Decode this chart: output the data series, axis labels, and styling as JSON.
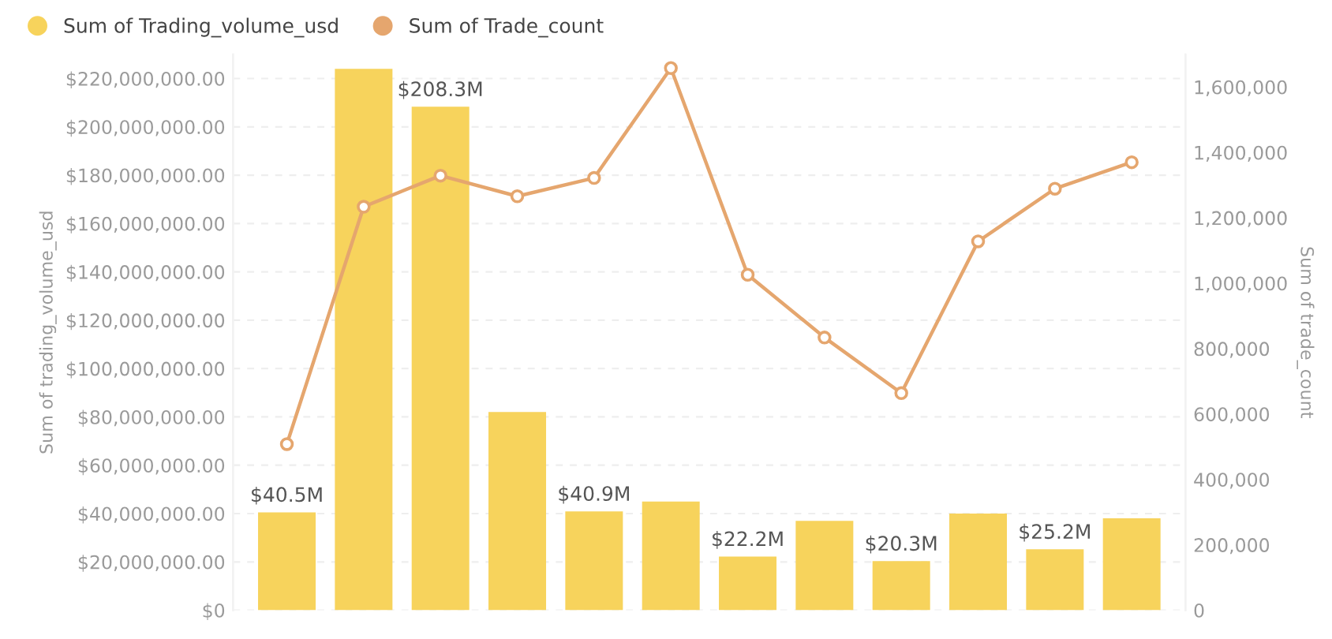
{
  "chart_data": {
    "type": "bar",
    "categories": [
      null,
      null,
      null,
      null,
      null,
      null,
      null,
      null,
      null,
      null,
      null,
      null
    ],
    "ylabel": "Sum of trading_volume_usd",
    "y2label": "Sum of trade_count",
    "series": [
      {
        "name": "Sum of Trading_volume_usd",
        "color": "#f7d35c",
        "values": [
          40500000,
          224000000,
          208300000,
          82000000,
          40900000,
          45000000,
          22200000,
          37000000,
          20300000,
          40000000,
          25200000,
          38000000
        ],
        "value_labels": [
          "$40.5M",
          null,
          "$208.3M",
          null,
          "$40.9M",
          null,
          "$22.2M",
          null,
          "$20.3M",
          null,
          "$25.2M",
          null
        ]
      },
      {
        "name": "Sum of Trade_count",
        "type": "line",
        "axis": "y2",
        "color": "#e5a66e",
        "marker": "circle",
        "values": [
          508000,
          1234000,
          1329000,
          1266000,
          1322000,
          1658000,
          1026000,
          834000,
          664000,
          1128000,
          1289000,
          1370000
        ]
      }
    ],
    "ylim": [
      0,
      230000000
    ],
    "yticks": [
      {
        "value": 0,
        "label": "$0"
      },
      {
        "value": 20000000,
        "label": "$20,000,000.00"
      },
      {
        "value": 40000000,
        "label": "$40,000,000.00"
      },
      {
        "value": 60000000,
        "label": "$60,000,000.00"
      },
      {
        "value": 80000000,
        "label": "$80,000,000.00"
      },
      {
        "value": 100000000,
        "label": "$100,000,000.00"
      },
      {
        "value": 120000000,
        "label": "$120,000,000.00"
      },
      {
        "value": 140000000,
        "label": "$140,000,000.00"
      },
      {
        "value": 160000000,
        "label": "$160,000,000.00"
      },
      {
        "value": 180000000,
        "label": "$180,000,000.00"
      },
      {
        "value": 200000000,
        "label": "$200,000,000.00"
      },
      {
        "value": 220000000,
        "label": "$220,000,000.00"
      }
    ],
    "y2lim": [
      0,
      1700000
    ],
    "y2ticks": [
      {
        "value": 0,
        "label": "0"
      },
      {
        "value": 200000,
        "label": "200,000"
      },
      {
        "value": 400000,
        "label": "400,000"
      },
      {
        "value": 600000,
        "label": "600,000"
      },
      {
        "value": 800000,
        "label": "800,000"
      },
      {
        "value": 1000000,
        "label": "1,000,000"
      },
      {
        "value": 1200000,
        "label": "1,200,000"
      },
      {
        "value": 1400000,
        "label": "1,400,000"
      },
      {
        "value": 1600000,
        "label": "1,600,000"
      }
    ],
    "grid": "y",
    "legend": "top left"
  }
}
